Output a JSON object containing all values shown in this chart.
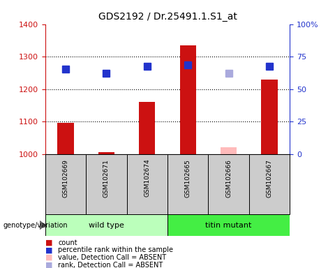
{
  "title": "GDS2192 / Dr.25491.1.S1_at",
  "samples": [
    "GSM102669",
    "GSM102671",
    "GSM102674",
    "GSM102665",
    "GSM102666",
    "GSM102667"
  ],
  "count_values": [
    1097,
    1007,
    1160,
    1335,
    null,
    1230
  ],
  "count_absent": [
    null,
    null,
    null,
    null,
    1020,
    null
  ],
  "rank_values": [
    1262,
    1248,
    1270,
    1275,
    null,
    1270
  ],
  "rank_absent": [
    null,
    null,
    null,
    null,
    1248,
    null
  ],
  "ylim_left": [
    1000,
    1400
  ],
  "yticks_left": [
    1000,
    1100,
    1200,
    1300,
    1400
  ],
  "yticks_right": [
    0,
    25,
    50,
    75,
    100
  ],
  "ytick_labels_right": [
    "0",
    "25",
    "50",
    "75",
    "100%"
  ],
  "hlines": [
    1100,
    1200,
    1300
  ],
  "bar_color": "#cc1111",
  "bar_absent_color": "#ffbbbb",
  "rank_color": "#2233cc",
  "rank_absent_color": "#aaaadd",
  "wildtype_color": "#bbffbb",
  "mutant_color": "#44ee44",
  "plot_bg": "#cccccc",
  "legend_items": [
    {
      "label": "count",
      "color": "#cc1111"
    },
    {
      "label": "percentile rank within the sample",
      "color": "#2233cc"
    },
    {
      "label": "value, Detection Call = ABSENT",
      "color": "#ffbbbb"
    },
    {
      "label": "rank, Detection Call = ABSENT",
      "color": "#aaaadd"
    }
  ],
  "bar_width": 0.4,
  "marker_size": 7
}
